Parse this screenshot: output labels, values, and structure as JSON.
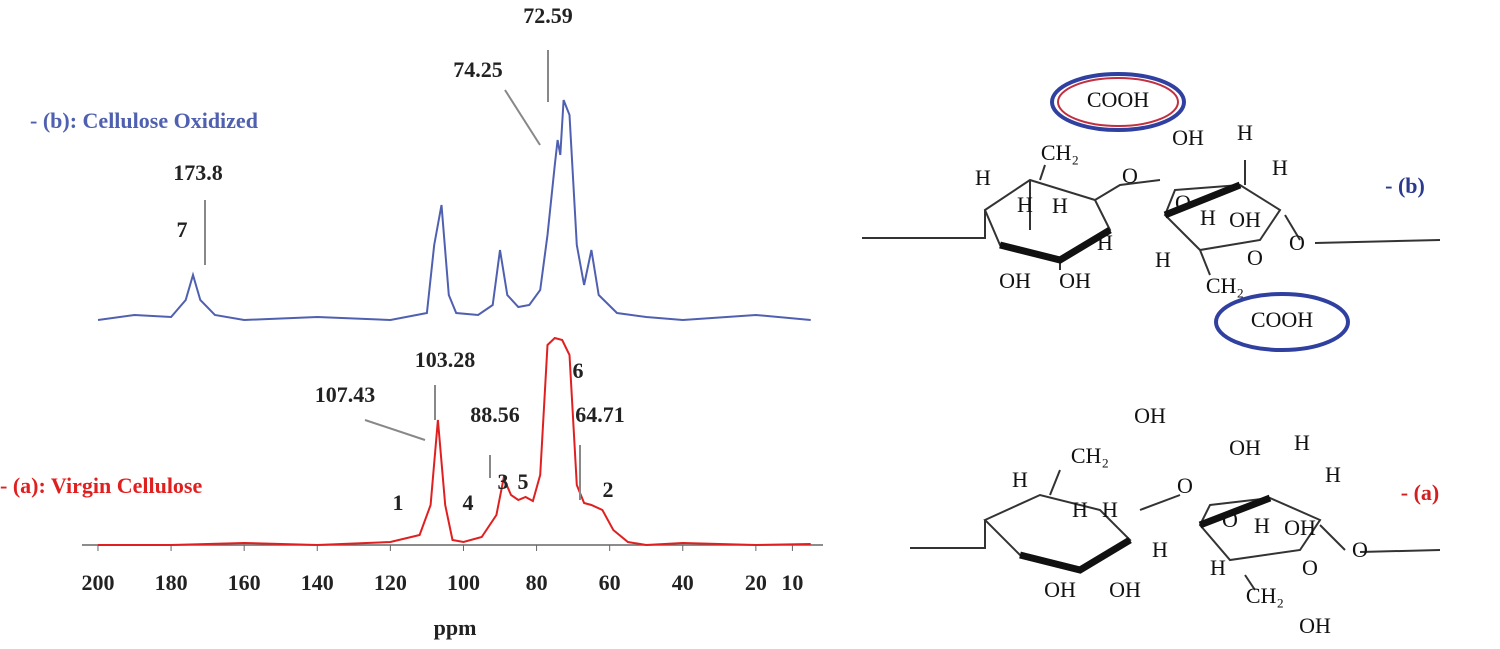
{
  "chart_data": {
    "type": "line",
    "xlabel": "ppm",
    "xlim": [
      203,
      3
    ],
    "xticks": [
      200,
      180,
      160,
      140,
      120,
      100,
      80,
      60,
      40,
      20,
      10
    ],
    "ylim": [
      0,
      460
    ],
    "series": [
      {
        "name": "- (a): Virgin Cellulose",
        "color": "#e02020",
        "x": [
          200,
          180,
          160,
          140,
          120,
          112,
          109,
          107,
          105,
          103,
          100,
          95,
          91,
          89,
          87,
          85,
          83,
          81,
          79,
          77,
          75,
          73,
          71,
          69,
          67,
          65,
          62,
          59,
          55,
          50,
          40,
          20,
          5
        ],
        "values": [
          0,
          0,
          2,
          0,
          3,
          10,
          40,
          125,
          40,
          5,
          3,
          8,
          30,
          67,
          50,
          45,
          48,
          44,
          70,
          200,
          207,
          205,
          190,
          60,
          42,
          40,
          35,
          15,
          3,
          0,
          2,
          0,
          1
        ]
      },
      {
        "name": "- (b): Cellulose Oxidized",
        "color": "#5060b0",
        "x": [
          200,
          190,
          180,
          176,
          174,
          172,
          168,
          160,
          140,
          120,
          110,
          108,
          106,
          104,
          102,
          96,
          92,
          90,
          88,
          85,
          82,
          79,
          77,
          75,
          74.25,
          73.5,
          72.59,
          71,
          69,
          67,
          65,
          63,
          58,
          50,
          40,
          20,
          5
        ],
        "values": [
          225,
          230,
          228,
          245,
          270,
          245,
          230,
          225,
          228,
          225,
          232,
          300,
          340,
          250,
          232,
          230,
          240,
          295,
          250,
          238,
          240,
          255,
          310,
          380,
          405,
          390,
          445,
          430,
          300,
          260,
          295,
          250,
          232,
          228,
          225,
          230,
          225
        ]
      }
    ],
    "annotations": [
      "72.59",
      "74.25",
      "173.8",
      "7",
      "103.28",
      "107.43",
      "88.56",
      "64.71",
      "6",
      "1",
      "4",
      "3",
      "5",
      "2"
    ]
  },
  "structures": [
    {
      "label": "- (b)",
      "texts": [
        "COOH",
        "CH₂",
        "OH",
        "H",
        "H",
        "O",
        "H",
        "H",
        "H",
        "O",
        "H",
        "OH",
        "H",
        "O",
        "H",
        "O",
        "OH",
        "OH",
        "CH₂",
        "COOH"
      ]
    },
    {
      "label": "- (a)",
      "texts": [
        "OH",
        "CH₂",
        "OH",
        "H",
        "H",
        "O",
        "H",
        "H",
        "H",
        "O",
        "H",
        "OH",
        "H",
        "O",
        "H",
        "O",
        "OH",
        "OH",
        "CH₂",
        "OH"
      ]
    }
  ]
}
